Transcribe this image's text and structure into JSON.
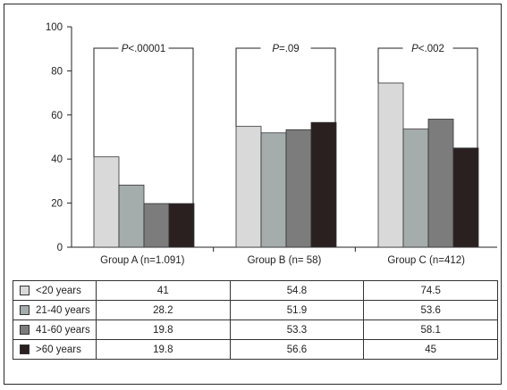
{
  "chart_data": {
    "type": "bar",
    "categories": [
      "Group A (n=1.091)",
      "Group B (n= 58)",
      "Group C (n=412)"
    ],
    "series": [
      {
        "name": "<20 years",
        "values": [
          41,
          54.8,
          74.5
        ],
        "color": "#d9d9d9"
      },
      {
        "name": "21-40 years",
        "values": [
          28.2,
          51.9,
          53.6
        ],
        "color": "#a5acac"
      },
      {
        "name": "41-60 years",
        "values": [
          19.8,
          53.3,
          58.1
        ],
        "color": "#7c7c7c"
      },
      {
        "name": ">60 years",
        "values": [
          19.8,
          56.6,
          45
        ],
        "color": "#2a2020"
      }
    ],
    "ylim": [
      0,
      100
    ],
    "yticks": [
      0,
      20,
      40,
      60,
      80,
      100
    ],
    "annotations": [
      "P<.00001",
      "P=.09",
      "P<.002"
    ],
    "table": {
      "rows": [
        {
          "label": "<20 years",
          "values": [
            "41",
            "54.8",
            "74.5"
          ]
        },
        {
          "label": "21-40 years",
          "values": [
            "28.2",
            "51.9",
            "53.6"
          ]
        },
        {
          "label": "41-60 years",
          "values": [
            "19.8",
            "53.3",
            "58.1"
          ]
        },
        {
          "label": ">60 years",
          "values": [
            "19.8",
            "56.6",
            "45"
          ]
        }
      ]
    }
  }
}
